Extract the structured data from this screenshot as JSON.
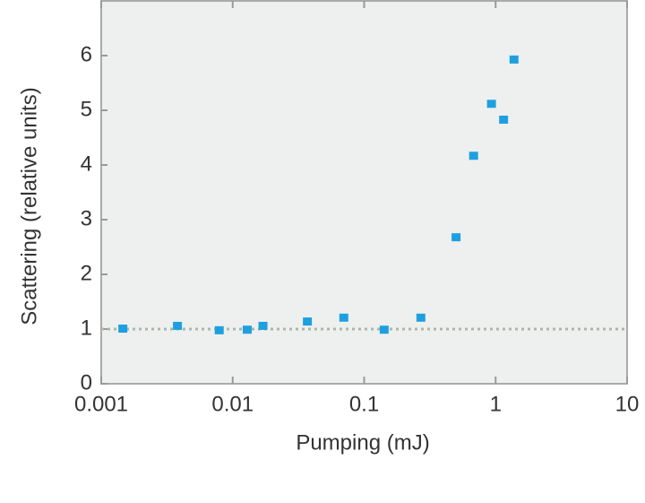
{
  "chart_data": {
    "type": "scatter",
    "xlabel": "Pumping (mJ)",
    "ylabel": "Scattering (relative units)",
    "x": [
      0.00146,
      0.0038,
      0.0079,
      0.0129,
      0.017,
      0.037,
      0.07,
      0.142,
      0.27,
      0.5,
      0.68,
      0.93,
      1.15,
      1.38
    ],
    "values": [
      1.0,
      1.05,
      0.97,
      0.98,
      1.05,
      1.13,
      1.2,
      0.98,
      1.2,
      2.67,
      4.16,
      5.11,
      4.82,
      5.92
    ],
    "color": "#1ea0e0",
    "xlog": true,
    "xlim": [
      0.001,
      10
    ],
    "ylim": [
      0,
      7
    ],
    "xticks": [
      0.001,
      0.01,
      0.1,
      1,
      10
    ],
    "yticks": [
      0,
      1,
      2,
      3,
      4,
      5,
      6
    ],
    "reference_line": 1
  }
}
